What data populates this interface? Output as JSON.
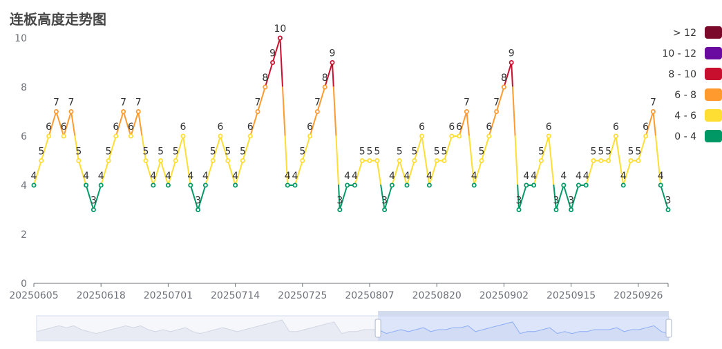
{
  "chart_data": {
    "type": "line",
    "title": "连板高度走势图",
    "xlabel": "",
    "ylabel": "",
    "ylim": [
      0,
      10
    ],
    "yticks": [
      0,
      2,
      4,
      6,
      8,
      10
    ],
    "x_tick_labels": [
      "20250605",
      "20250618",
      "20250701",
      "20250714",
      "20250725",
      "20250807",
      "20250820",
      "20250902",
      "20250915",
      "20250926"
    ],
    "series": [
      {
        "values": [
          4,
          5,
          6,
          7,
          6,
          7,
          5,
          4,
          3,
          4,
          5,
          6,
          7,
          6,
          7,
          5,
          4,
          5,
          4,
          5,
          6,
          4,
          3,
          4,
          5,
          6,
          5,
          4,
          5,
          6,
          7,
          8,
          9,
          10,
          4,
          4,
          5,
          6,
          7,
          8,
          9,
          3,
          4,
          4,
          5,
          5,
          5,
          3,
          4,
          5,
          4,
          5,
          6,
          4,
          5,
          5,
          6,
          6,
          7,
          4,
          5,
          6,
          7,
          8,
          9,
          3,
          4,
          4,
          5,
          6,
          3,
          4,
          3,
          4,
          4,
          5,
          5,
          5,
          6,
          4,
          5,
          5,
          6,
          7,
          4,
          3
        ]
      }
    ],
    "visual_map": [
      {
        "label": "> 12",
        "color": "#7b0a2a"
      },
      {
        "label": "10 - 12",
        "color": "#6a0aa0"
      },
      {
        "label": "8 - 10",
        "color": "#c8102e"
      },
      {
        "label": "6 - 8",
        "color": "#ff9a2e"
      },
      {
        "label": "4 - 6",
        "color": "#ffde33"
      },
      {
        "label": "0 - 4",
        "color": "#009966"
      }
    ],
    "legend_position": "right",
    "data_zoom": {
      "start_percent": 54,
      "end_percent": 100
    }
  }
}
